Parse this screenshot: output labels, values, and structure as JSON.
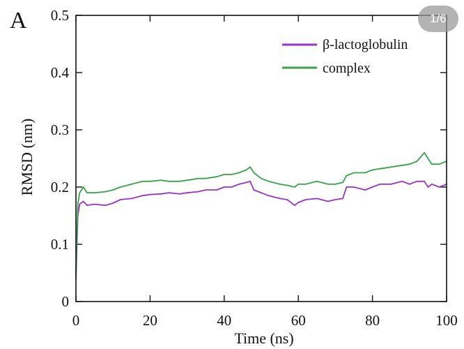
{
  "panel_label": "A",
  "page_indicator": "1/6",
  "colors": {
    "beta_lactoglobulin": "#9a32c8",
    "complex": "#3aa24a",
    "axis": "#111111"
  },
  "chart_data": {
    "type": "line",
    "title": "",
    "xlabel": "Time (ns)",
    "ylabel": "RMSD (nm)",
    "xlim": [
      0,
      100
    ],
    "ylim": [
      0,
      0.5
    ],
    "xticks": [
      0,
      20,
      40,
      60,
      80,
      100
    ],
    "yticks": [
      0,
      0.1,
      0.2,
      0.3,
      0.4,
      0.5
    ],
    "ytick_labels": [
      "0",
      "0.1",
      "0.2",
      "0.3",
      "0.4",
      "0.5"
    ],
    "grid": false,
    "legend_position": "top-right",
    "series": [
      {
        "name": "β-lactoglobulin",
        "color": "#9a32c8",
        "x": [
          0,
          0.5,
          1,
          2,
          3,
          5,
          8,
          10,
          12,
          15,
          18,
          20,
          23,
          25,
          28,
          30,
          33,
          35,
          38,
          40,
          42,
          44,
          46,
          47,
          48,
          50,
          52,
          55,
          57,
          59,
          60,
          62,
          65,
          68,
          70,
          72,
          73,
          75,
          78,
          80,
          82,
          85,
          88,
          90,
          92,
          94,
          95,
          96,
          98,
          100
        ],
        "values": [
          0.04,
          0.15,
          0.17,
          0.175,
          0.168,
          0.17,
          0.168,
          0.172,
          0.178,
          0.18,
          0.185,
          0.187,
          0.188,
          0.19,
          0.188,
          0.19,
          0.192,
          0.195,
          0.195,
          0.2,
          0.2,
          0.205,
          0.208,
          0.21,
          0.195,
          0.19,
          0.185,
          0.18,
          0.178,
          0.168,
          0.173,
          0.178,
          0.18,
          0.175,
          0.178,
          0.18,
          0.2,
          0.2,
          0.195,
          0.2,
          0.205,
          0.205,
          0.21,
          0.205,
          0.21,
          0.21,
          0.2,
          0.205,
          0.2,
          0.205
        ]
      },
      {
        "name": "complex",
        "color": "#3aa24a",
        "x": [
          0,
          0.5,
          1,
          2,
          3,
          5,
          8,
          10,
          12,
          15,
          18,
          20,
          23,
          25,
          28,
          30,
          33,
          35,
          38,
          40,
          42,
          44,
          46,
          47,
          48,
          50,
          52,
          55,
          57,
          59,
          60,
          62,
          65,
          68,
          70,
          72,
          73,
          75,
          78,
          80,
          82,
          85,
          88,
          90,
          92,
          94,
          95,
          96,
          98,
          100
        ],
        "values": [
          0.05,
          0.17,
          0.19,
          0.2,
          0.19,
          0.19,
          0.192,
          0.195,
          0.2,
          0.205,
          0.21,
          0.21,
          0.212,
          0.21,
          0.21,
          0.212,
          0.215,
          0.215,
          0.218,
          0.222,
          0.222,
          0.225,
          0.23,
          0.235,
          0.225,
          0.215,
          0.21,
          0.205,
          0.203,
          0.2,
          0.205,
          0.205,
          0.21,
          0.205,
          0.205,
          0.208,
          0.22,
          0.225,
          0.225,
          0.23,
          0.232,
          0.235,
          0.238,
          0.24,
          0.245,
          0.26,
          0.25,
          0.24,
          0.24,
          0.245
        ]
      }
    ]
  }
}
